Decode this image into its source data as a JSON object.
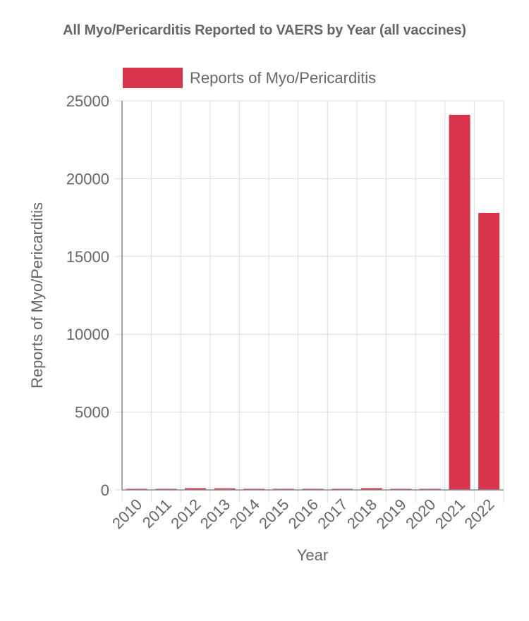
{
  "chart_data": {
    "type": "bar",
    "title": "All Myo/Pericarditis Reported to VAERS by Year (all vaccines)",
    "xlabel": "Year",
    "ylabel": "Reports of Myo/Pericarditis",
    "categories": [
      "2010",
      "2011",
      "2012",
      "2013",
      "2014",
      "2015",
      "2016",
      "2017",
      "2018",
      "2019",
      "2020",
      "2021",
      "2022"
    ],
    "series": [
      {
        "name": "Reports of Myo/Pericarditis",
        "color": "#d9344b",
        "values": [
          30,
          45,
          110,
          100,
          40,
          25,
          35,
          45,
          110,
          45,
          30,
          24100,
          17800
        ]
      }
    ],
    "ylim": [
      0,
      25000
    ],
    "yticks": [
      "0",
      "5000",
      "10000",
      "15000",
      "20000",
      "25000"
    ],
    "grid": true,
    "legend_position": "top"
  }
}
